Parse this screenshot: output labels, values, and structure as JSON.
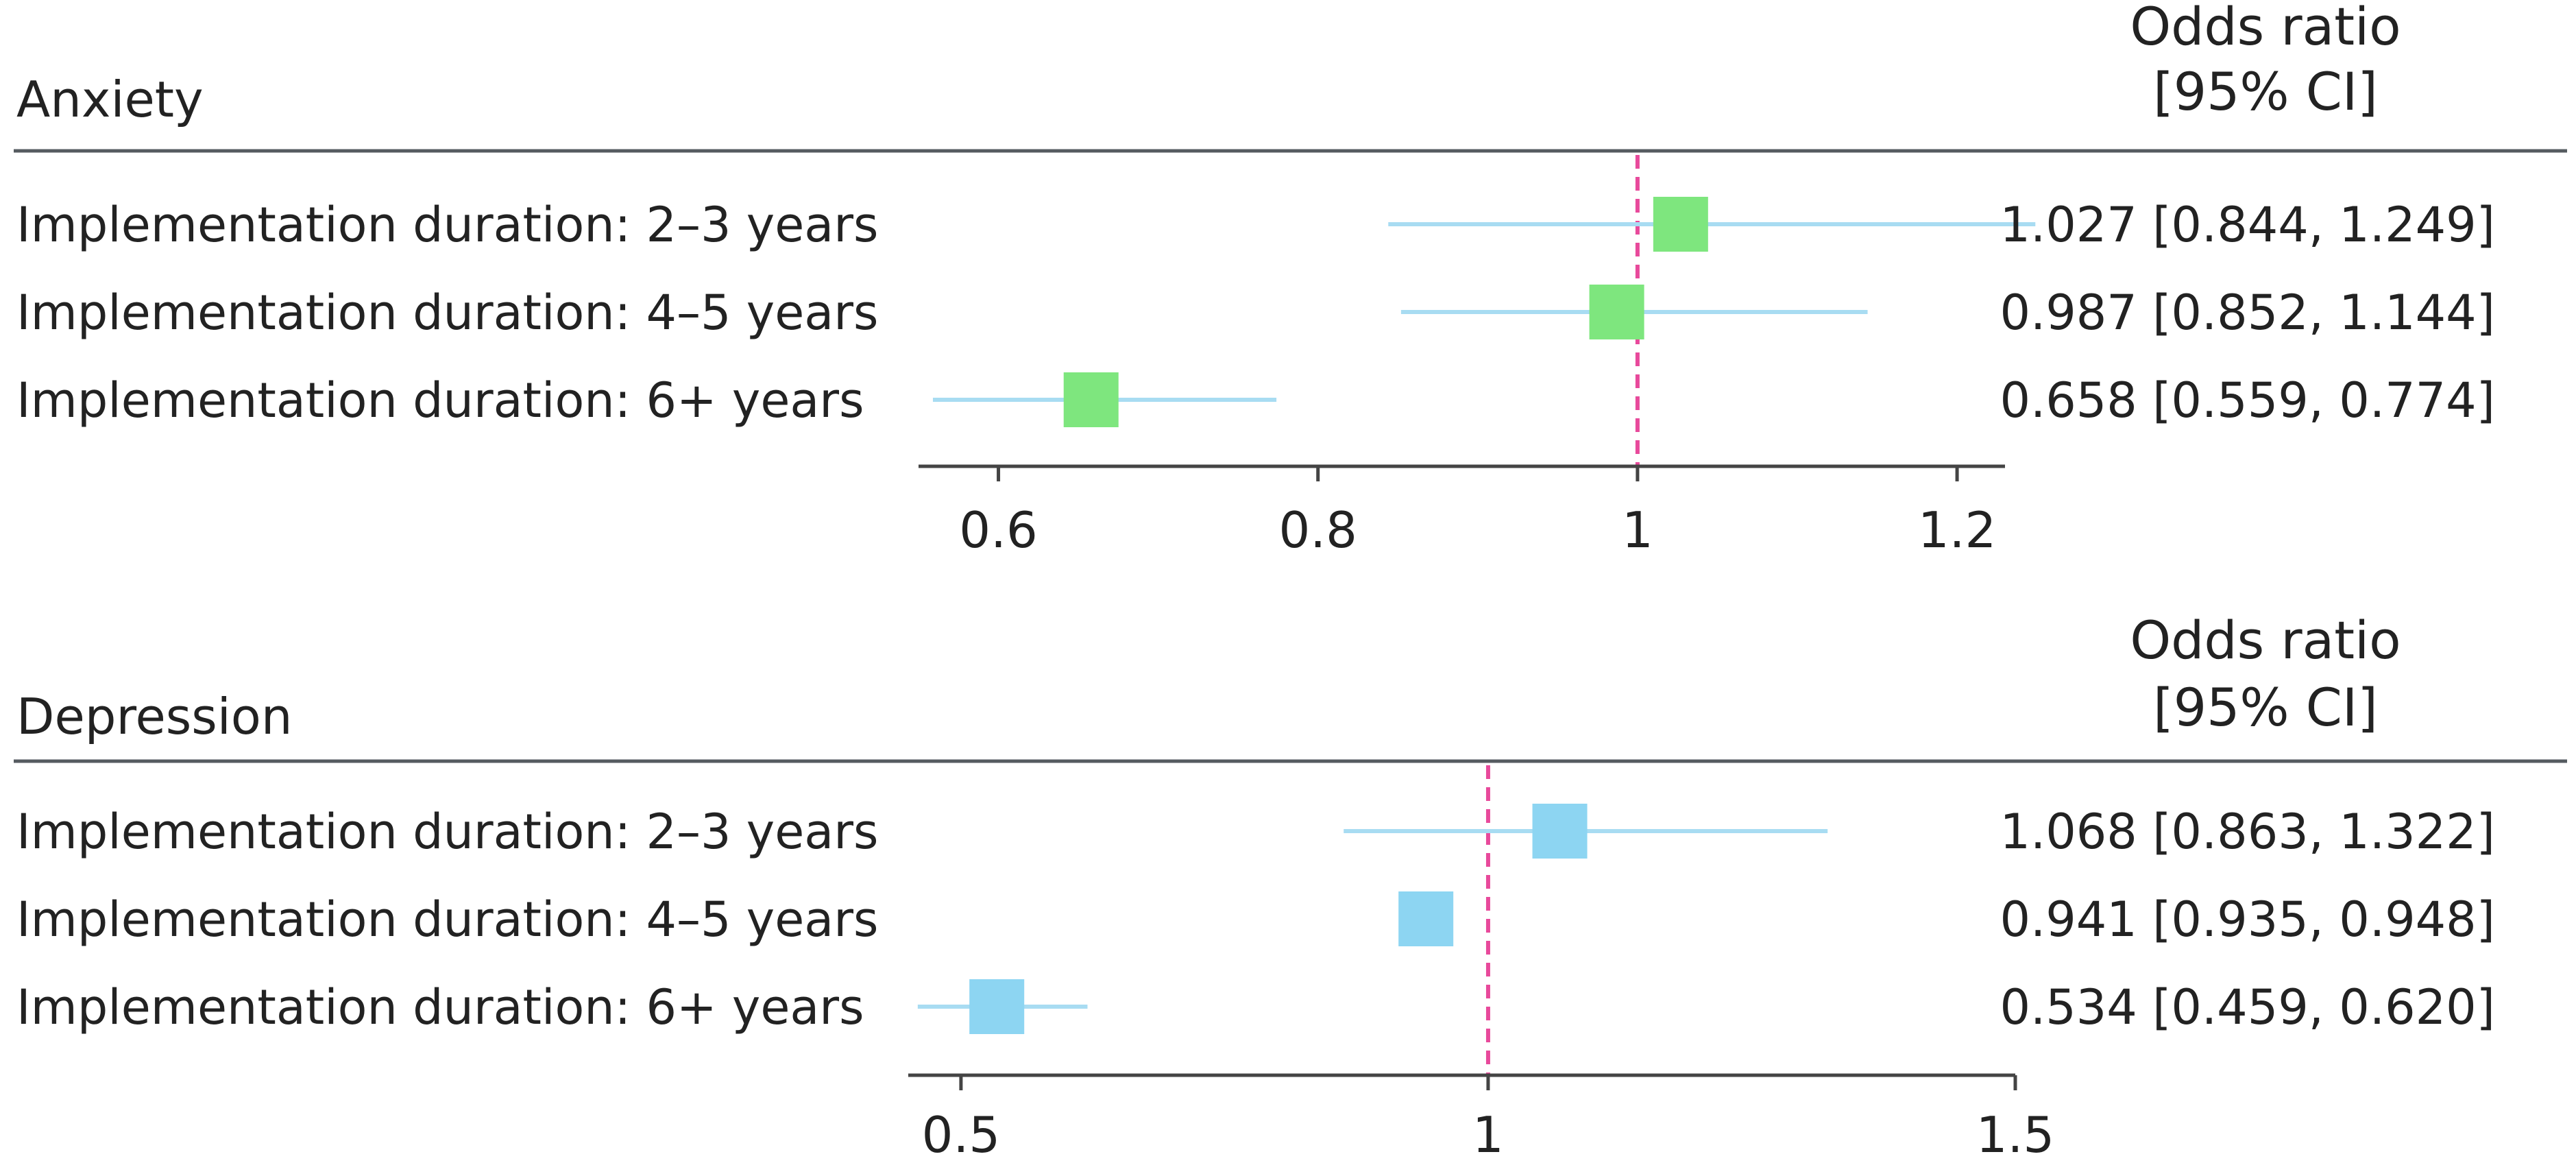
{
  "chart_data": [
    {
      "type": "forest",
      "title": "Anxiety",
      "stat_header": [
        "Odds ratio",
        "[95% CI]"
      ],
      "xlim": [
        0.55,
        1.23
      ],
      "xticks": [
        0.6,
        0.8,
        1,
        1.2
      ],
      "xtick_labels": [
        "0.6",
        "0.8",
        "1",
        "1.2"
      ],
      "reference_line": 1,
      "marker_color": "#7ee67e",
      "ci_color": "#a8dcf2",
      "reference_color": "#e8499b",
      "rows": [
        {
          "label": "Implementation duration: 2–3 years",
          "or": 1.027,
          "lower": 0.844,
          "upper": 1.249,
          "text": "1.027 [0.844, 1.249]"
        },
        {
          "label": "Implementation duration: 4–5 years",
          "or": 0.987,
          "lower": 0.852,
          "upper": 1.144,
          "text": "0.987 [0.852, 1.144]"
        },
        {
          "label": "Implementation duration: 6+ years",
          "or": 0.658,
          "lower": 0.559,
          "upper": 0.774,
          "text": "0.658 [0.559, 0.774]"
        }
      ]
    },
    {
      "type": "forest",
      "title": "Depression",
      "stat_header": [
        "Odds ratio",
        "[95% CI]"
      ],
      "xlim": [
        0.45,
        1.5
      ],
      "xticks": [
        0.5,
        1,
        1.5
      ],
      "xtick_labels": [
        "0.5",
        "1",
        "1.5"
      ],
      "reference_line": 1,
      "marker_color": "#8dd5f2",
      "ci_color": "#a8dcf2",
      "reference_color": "#e8499b",
      "rows": [
        {
          "label": "Implementation duration: 2–3 years",
          "or": 1.068,
          "lower": 0.863,
          "upper": 1.322,
          "text": "1.068 [0.863, 1.322]"
        },
        {
          "label": "Implementation duration: 4–5 years",
          "or": 0.941,
          "lower": 0.935,
          "upper": 0.948,
          "text": "0.941 [0.935, 0.948]"
        },
        {
          "label": "Implementation duration: 6+ years",
          "or": 0.534,
          "lower": 0.459,
          "upper": 0.62,
          "text": "0.534 [0.459, 0.620]"
        }
      ]
    }
  ]
}
